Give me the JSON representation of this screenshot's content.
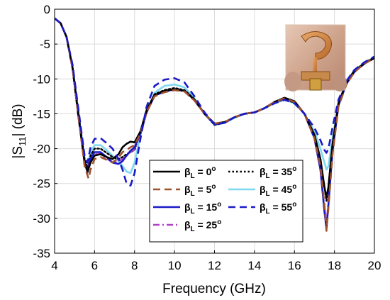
{
  "chart_data": {
    "type": "line",
    "title": "",
    "xlabel": "Frequency (GHz)",
    "ylabel_pre": "|S",
    "ylabel_sub": "11",
    "ylabel_post": "| (dB)",
    "xlim": [
      4,
      20
    ],
    "ylim": [
      -35,
      0
    ],
    "x_ticks": [
      4,
      6,
      8,
      10,
      12,
      14,
      16,
      18,
      20
    ],
    "x_tick_labels": [
      "4",
      "6",
      "8",
      "10",
      "12",
      "14",
      "16",
      "18",
      "20"
    ],
    "y_ticks": [
      0,
      -5,
      -10,
      -15,
      -20,
      -25,
      -30,
      -35
    ],
    "y_tick_labels": [
      "0",
      "-5",
      "-10",
      "-15",
      "-20",
      "-25",
      "-30",
      "-35"
    ],
    "grid": true,
    "legend_position": "lower-center",
    "legend_param_symbol": "β",
    "legend_param_sub": "L",
    "legend_unit": "o",
    "inset_image": "antenna-photo",
    "series": [
      {
        "name": "0",
        "color": "#000000",
        "style": "solid",
        "width": 2.6,
        "x": [
          4.0,
          4.3,
          4.6,
          4.9,
          5.2,
          5.5,
          5.65,
          5.8,
          6.0,
          6.3,
          6.6,
          6.9,
          7.2,
          7.4,
          7.6,
          7.8,
          8.0,
          8.3,
          8.6,
          9.0,
          9.5,
          10.0,
          10.5,
          11.0,
          11.5,
          12.0,
          12.5,
          13.0,
          13.5,
          14.0,
          14.5,
          15.0,
          15.5,
          16.0,
          16.5,
          17.0,
          17.3,
          17.5,
          17.6,
          17.7,
          17.9,
          18.2,
          18.6,
          19.0,
          19.5,
          20.0
        ],
        "y": [
          -1.3,
          -2.0,
          -4.0,
          -8.5,
          -15.5,
          -22.0,
          -23.3,
          -22.0,
          -21.0,
          -20.8,
          -21.2,
          -21.5,
          -20.8,
          -19.8,
          -19.3,
          -19.0,
          -19.1,
          -17.5,
          -14.5,
          -12.3,
          -11.7,
          -11.5,
          -11.7,
          -13.0,
          -15.0,
          -16.4,
          -16.2,
          -15.5,
          -15.0,
          -14.8,
          -14.2,
          -13.3,
          -12.7,
          -13.2,
          -15.0,
          -18.0,
          -21.5,
          -25.5,
          -27.0,
          -25.5,
          -19.5,
          -13.5,
          -10.5,
          -8.8,
          -7.8,
          -7.0
        ]
      },
      {
        "name": "5",
        "color": "#a0522d",
        "style": "dash",
        "width": 2.6,
        "x": [
          4.0,
          4.3,
          4.6,
          4.9,
          5.2,
          5.5,
          5.7,
          5.8,
          6.0,
          6.3,
          6.6,
          6.9,
          7.2,
          7.4,
          7.6,
          7.8,
          8.0,
          8.3,
          8.6,
          9.0,
          9.5,
          10.0,
          10.5,
          11.0,
          11.5,
          12.0,
          12.5,
          13.0,
          13.5,
          14.0,
          14.5,
          15.0,
          15.5,
          16.0,
          16.5,
          17.0,
          17.3,
          17.5,
          17.6,
          17.7,
          17.9,
          18.2,
          18.6,
          19.0,
          19.5,
          20.0
        ],
        "y": [
          -1.3,
          -2.0,
          -4.0,
          -8.5,
          -15.5,
          -22.5,
          -24.3,
          -23.0,
          -21.5,
          -21.2,
          -21.6,
          -22.0,
          -21.3,
          -20.5,
          -20.2,
          -19.8,
          -19.5,
          -17.8,
          -14.8,
          -12.5,
          -11.9,
          -11.6,
          -11.8,
          -13.1,
          -15.0,
          -16.4,
          -16.2,
          -15.5,
          -15.0,
          -14.8,
          -14.2,
          -13.3,
          -12.8,
          -13.3,
          -15.0,
          -18.5,
          -22.5,
          -28.0,
          -31.8,
          -28.5,
          -21.0,
          -14.0,
          -10.8,
          -9.0,
          -7.8,
          -7.0
        ]
      },
      {
        "name": "15",
        "color": "#1a1ac8",
        "style": "solid",
        "width": 2.6,
        "x": [
          4.0,
          4.3,
          4.6,
          4.9,
          5.2,
          5.5,
          5.65,
          5.8,
          6.0,
          6.3,
          6.6,
          6.9,
          7.2,
          7.4,
          7.6,
          7.8,
          8.0,
          8.3,
          8.6,
          9.0,
          9.5,
          10.0,
          10.5,
          11.0,
          11.5,
          12.0,
          12.5,
          13.0,
          13.5,
          14.0,
          14.5,
          15.0,
          15.5,
          16.0,
          16.5,
          17.0,
          17.3,
          17.5,
          17.6,
          17.7,
          17.9,
          18.2,
          18.6,
          19.0,
          19.5,
          20.0
        ],
        "y": [
          -1.3,
          -2.0,
          -4.0,
          -8.5,
          -15.5,
          -22.0,
          -23.4,
          -21.5,
          -20.5,
          -20.5,
          -21.2,
          -22.0,
          -22.2,
          -21.8,
          -21.0,
          -20.3,
          -19.8,
          -17.8,
          -14.8,
          -12.4,
          -11.8,
          -11.5,
          -11.7,
          -13.0,
          -15.0,
          -16.5,
          -16.3,
          -15.5,
          -15.0,
          -14.8,
          -14.2,
          -13.3,
          -12.8,
          -13.3,
          -15.0,
          -18.5,
          -23.0,
          -29.0,
          -31.5,
          -28.0,
          -20.5,
          -13.8,
          -10.7,
          -9.0,
          -7.8,
          -7.0
        ]
      },
      {
        "name": "25",
        "color": "#b040c8",
        "style": "dashdot",
        "width": 2.6,
        "x": [
          4.0,
          4.3,
          4.6,
          4.9,
          5.2,
          5.5,
          5.65,
          5.8,
          6.0,
          6.3,
          6.6,
          6.9,
          7.2,
          7.4,
          7.6,
          7.8,
          8.0,
          8.3,
          8.6,
          9.0,
          9.5,
          10.0,
          10.5,
          11.0,
          11.5,
          12.0,
          12.5,
          13.0,
          13.5,
          14.0,
          14.5,
          15.0,
          15.5,
          16.0,
          16.5,
          17.0,
          17.3,
          17.5,
          17.6,
          17.7,
          17.9,
          18.2,
          18.6,
          19.0,
          19.5,
          20.0
        ],
        "y": [
          -1.3,
          -2.0,
          -4.0,
          -8.5,
          -15.5,
          -22.0,
          -23.0,
          -21.5,
          -20.8,
          -20.8,
          -21.4,
          -22.0,
          -21.8,
          -21.5,
          -21.0,
          -20.5,
          -20.0,
          -17.8,
          -14.8,
          -12.4,
          -11.8,
          -11.6,
          -11.8,
          -13.1,
          -15.0,
          -16.5,
          -16.3,
          -15.5,
          -15.0,
          -14.8,
          -14.2,
          -13.3,
          -12.8,
          -13.3,
          -15.0,
          -18.5,
          -23.0,
          -28.5,
          -31.0,
          -27.5,
          -20.5,
          -13.8,
          -10.7,
          -9.0,
          -7.8,
          -7.0
        ]
      },
      {
        "name": "35",
        "color": "#000000",
        "style": "dot",
        "width": 2.4,
        "x": [
          4.0,
          4.3,
          4.6,
          4.9,
          5.2,
          5.5,
          5.65,
          5.8,
          6.0,
          6.3,
          6.6,
          6.9,
          7.2,
          7.4,
          7.6,
          7.8,
          8.0,
          8.3,
          8.6,
          9.0,
          9.5,
          10.0,
          10.5,
          11.0,
          11.5,
          12.0,
          12.5,
          13.0,
          13.5,
          14.0,
          14.5,
          15.0,
          15.5,
          16.0,
          16.5,
          17.0,
          17.3,
          17.5,
          17.6,
          17.7,
          17.9,
          18.2,
          18.6,
          19.0,
          19.5,
          20.0
        ],
        "y": [
          -1.3,
          -2.0,
          -4.0,
          -8.3,
          -15.0,
          -21.5,
          -22.8,
          -21.0,
          -20.0,
          -20.0,
          -20.6,
          -21.2,
          -21.5,
          -21.2,
          -20.8,
          -20.5,
          -20.2,
          -17.5,
          -14.5,
          -12.2,
          -11.6,
          -11.3,
          -11.6,
          -12.9,
          -15.0,
          -16.6,
          -16.3,
          -15.5,
          -15.0,
          -14.8,
          -14.2,
          -13.4,
          -12.9,
          -13.4,
          -15.0,
          -18.0,
          -21.5,
          -25.5,
          -27.5,
          -25.5,
          -19.5,
          -13.5,
          -10.5,
          -8.8,
          -7.7,
          -6.9
        ]
      },
      {
        "name": "45",
        "color": "#7fd8f0",
        "style": "solid",
        "width": 2.6,
        "x": [
          4.0,
          4.3,
          4.6,
          4.9,
          5.2,
          5.5,
          5.65,
          5.8,
          6.0,
          6.3,
          6.6,
          6.9,
          7.2,
          7.4,
          7.6,
          7.8,
          8.0,
          8.3,
          8.6,
          9.0,
          9.5,
          10.0,
          10.5,
          11.0,
          11.5,
          12.0,
          12.5,
          13.0,
          13.5,
          14.0,
          14.5,
          15.0,
          15.5,
          16.0,
          16.5,
          17.0,
          17.3,
          17.5,
          17.6,
          17.7,
          17.9,
          18.2,
          18.6,
          19.0,
          19.5,
          20.0
        ],
        "y": [
          -1.3,
          -2.0,
          -4.0,
          -8.3,
          -15.0,
          -21.5,
          -22.5,
          -20.5,
          -19.5,
          -19.5,
          -20.2,
          -21.0,
          -21.8,
          -22.5,
          -23.3,
          -23.5,
          -22.0,
          -18.0,
          -14.8,
          -12.0,
          -11.0,
          -10.8,
          -11.2,
          -12.8,
          -15.0,
          -16.6,
          -16.3,
          -15.6,
          -15.0,
          -14.8,
          -14.2,
          -13.5,
          -13.0,
          -13.5,
          -15.0,
          -17.5,
          -20.0,
          -22.0,
          -23.0,
          -22.5,
          -18.5,
          -13.5,
          -10.5,
          -8.8,
          -7.7,
          -6.9
        ]
      },
      {
        "name": "55",
        "color": "#1a1ac8",
        "style": "dash",
        "width": 2.6,
        "x": [
          4.0,
          4.3,
          4.6,
          4.9,
          5.2,
          5.5,
          5.65,
          5.8,
          6.0,
          6.3,
          6.6,
          6.9,
          7.2,
          7.4,
          7.6,
          7.8,
          8.0,
          8.3,
          8.6,
          9.0,
          9.5,
          10.0,
          10.5,
          11.0,
          11.5,
          12.0,
          12.5,
          13.0,
          13.5,
          14.0,
          14.5,
          15.0,
          15.5,
          16.0,
          16.5,
          17.0,
          17.3,
          17.5,
          17.6,
          17.7,
          17.9,
          18.2,
          18.6,
          19.0,
          19.5,
          20.0
        ],
        "y": [
          -1.3,
          -2.0,
          -4.0,
          -8.0,
          -14.5,
          -21.0,
          -22.0,
          -19.8,
          -18.6,
          -18.5,
          -19.2,
          -20.0,
          -21.5,
          -23.0,
          -25.0,
          -25.3,
          -23.5,
          -18.5,
          -14.0,
          -11.0,
          -10.1,
          -9.9,
          -10.5,
          -12.5,
          -14.8,
          -16.5,
          -16.3,
          -15.5,
          -15.0,
          -14.8,
          -14.2,
          -13.5,
          -13.0,
          -13.5,
          -15.0,
          -17.0,
          -18.8,
          -20.2,
          -20.6,
          -20.0,
          -17.0,
          -13.0,
          -10.3,
          -8.7,
          -7.6,
          -6.8
        ]
      }
    ]
  }
}
